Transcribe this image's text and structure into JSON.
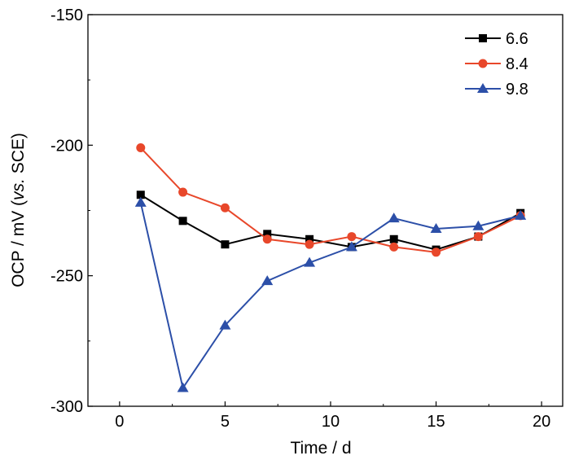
{
  "chart_data": {
    "type": "line",
    "title": "",
    "xlabel": "Time / d",
    "ylabel": {
      "prefix": "OCP / mV (",
      "italic": "vs.",
      "suffix": " SCE)"
    },
    "xlim": [
      -1.5,
      21
    ],
    "ylim": [
      -300,
      -150
    ],
    "xticks": [
      "0",
      "5",
      "10",
      "15",
      "20"
    ],
    "yticks": [
      "-300",
      "-250",
      "-200",
      "-150"
    ],
    "grid": false,
    "legend_position": "top-right",
    "series": [
      {
        "name": "6.6",
        "color": "#000000",
        "marker": "square",
        "x": [
          1,
          3,
          5,
          7,
          9,
          11,
          13,
          15,
          17,
          19
        ],
        "y": [
          -219,
          -229,
          -238,
          -234,
          -236,
          -239,
          -236,
          -240,
          -235,
          -226
        ]
      },
      {
        "name": "8.4",
        "color": "#e8472a",
        "marker": "circle",
        "x": [
          1,
          3,
          5,
          7,
          9,
          11,
          13,
          15,
          17,
          19
        ],
        "y": [
          -201,
          -218,
          -224,
          -236,
          -238,
          -235,
          -239,
          -241,
          -235,
          -227
        ]
      },
      {
        "name": "9.8",
        "color": "#2c4fa8",
        "marker": "triangle",
        "x": [
          1,
          3,
          5,
          7,
          9,
          11,
          13,
          15,
          17,
          19
        ],
        "y": [
          -222,
          -293,
          -269,
          -252,
          -245,
          -239,
          -228,
          -232,
          -231,
          -227
        ]
      }
    ]
  }
}
